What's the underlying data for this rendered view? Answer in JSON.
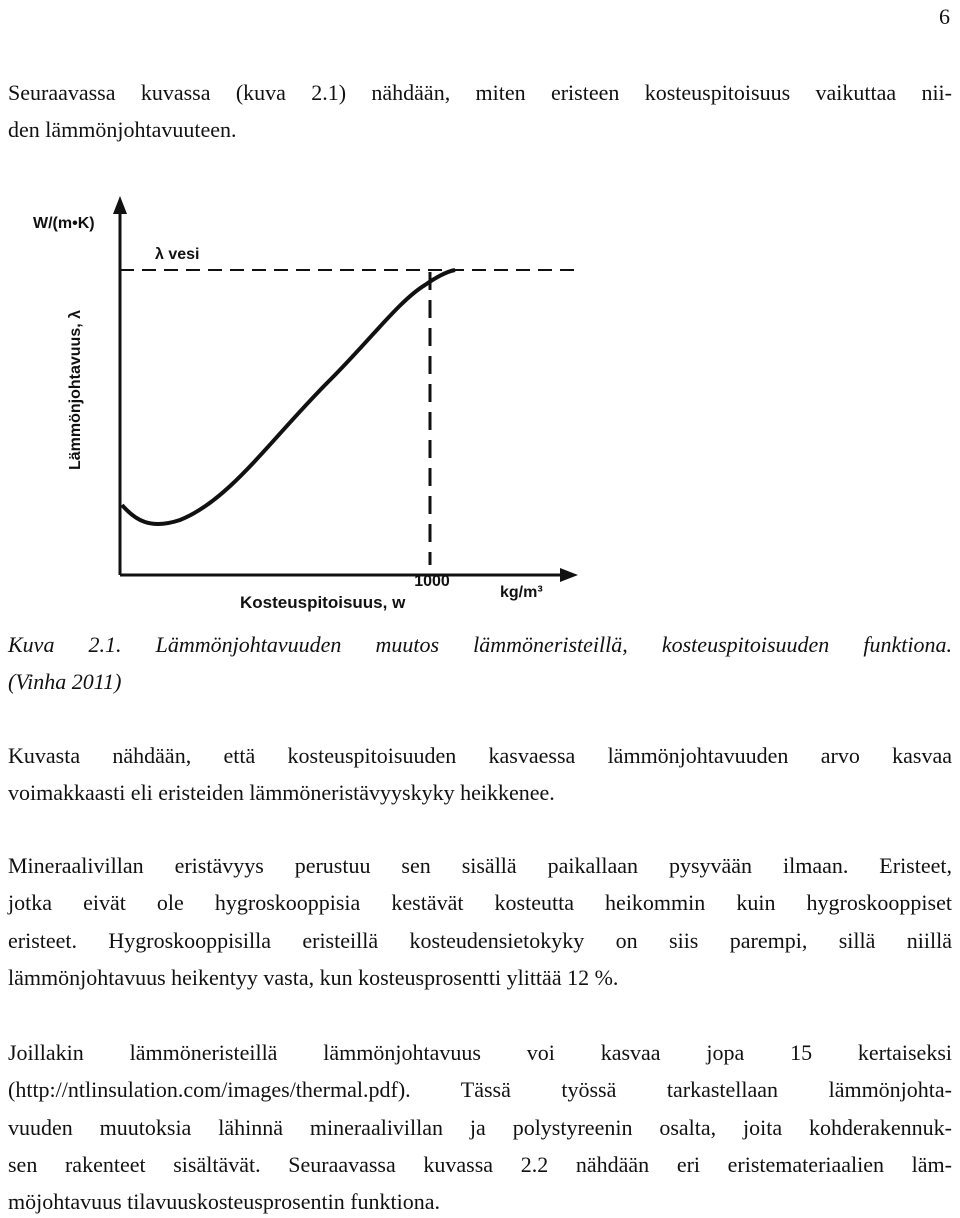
{
  "page_number": "6",
  "intro": [
    "Seuraavassa kuvassa (kuva 2.1) nähdään, miten eristeen kosteuspitoisuus vaikuttaa nii-",
    "den lämmönjohtavuuteen."
  ],
  "figure": {
    "y_axis_unit": "W/(m•K)",
    "y_axis_label": "Lämmönjohtavuus, λ",
    "reference_label": "λ vesi",
    "x_marker": "1000",
    "x_axis_label": "Kosteuspitoisuus, w",
    "x_axis_unit": "kg/m³"
  },
  "caption": [
    "Kuva 2.1. Lämmönjohtavuuden muutos lämmöneristeillä, kosteuspitoisuuden funktiona.",
    "(Vinha 2011)"
  ],
  "paragraphs": [
    [
      "Kuvasta nähdään, että kosteuspitoisuuden kasvaessa lämmönjohtavuuden arvo kasvaa",
      "voimakkaasti eli eristeiden lämmöneristävyyskyky heikkenee."
    ],
    [
      "Mineraalivillan eristävyys perustuu sen sisällä paikallaan pysyvään ilmaan. Eristeet,",
      "jotka eivät ole hygroskooppisia kestävät kosteutta heikommin kuin hygroskooppiset",
      "eristeet. Hygroskooppisilla eristeillä kosteudensietokyky on siis parempi, sillä niillä",
      "lämmönjohtavuus heikentyy vasta, kun kosteusprosentti ylittää 12 %."
    ],
    [
      "Joillakin lämmöneristeillä lämmönjohtavuus voi kasvaa jopa 15 kertaiseksi",
      "(http://ntlinsulation.com/images/thermal.pdf). Tässä työssä tarkastellaan lämmönjohta-",
      "vuuden muutoksia lähinnä mineraalivillan ja polystyreenin osalta, joita kohderakennuk-",
      "sen rakenteet sisältävät. Seuraavassa kuvassa 2.2 nähdään eri eristemateriaalien läm-",
      "möjohtavuus tilavuuskosteusprosentin funktiona."
    ]
  ]
}
